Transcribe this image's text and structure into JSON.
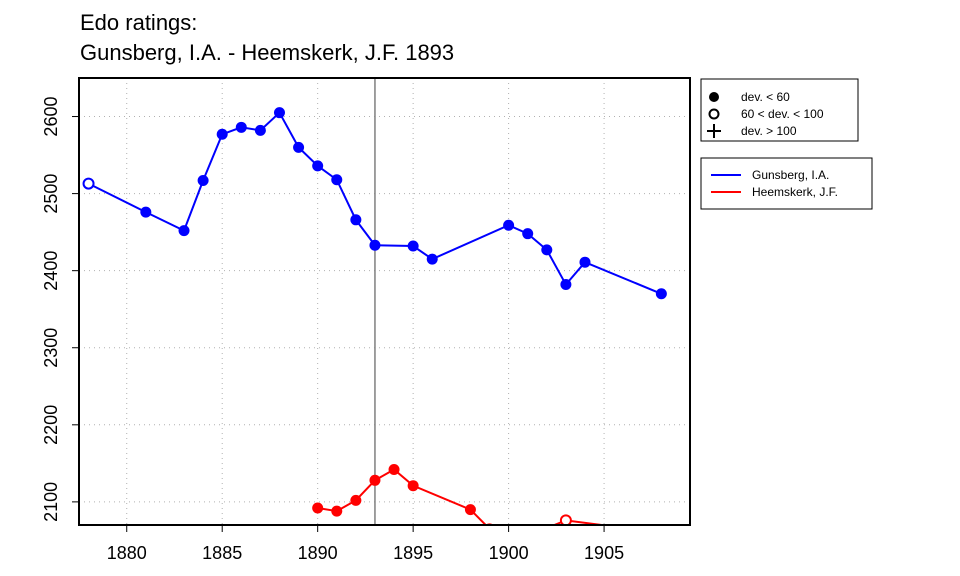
{
  "chart": {
    "title_line1": "Edo ratings:",
    "title_line2": "Gunsberg, I.A. - Heemskerk, J.F. 1893"
  },
  "legend_symbols": {
    "items": [
      {
        "label": "dev. < 60",
        "symbol": "filled-circle"
      },
      {
        "label": "60 < dev. < 100",
        "symbol": "open-circle"
      },
      {
        "label": "dev. > 100",
        "symbol": "plus"
      }
    ]
  },
  "legend_series": {
    "items": [
      {
        "label": "Gunsberg, I.A.",
        "color": "#0000ff"
      },
      {
        "label": "Heemskerk, J.F.",
        "color": "#ff0000"
      }
    ]
  },
  "chart_data": {
    "type": "line",
    "title": "Edo ratings: Gunsberg, I.A. - Heemskerk, J.F. 1893",
    "xlabel": "",
    "ylabel": "",
    "xlim": [
      1877.5,
      1909.5
    ],
    "ylim": [
      2070,
      2650
    ],
    "x_ticks": [
      1880,
      1885,
      1890,
      1895,
      1900,
      1905
    ],
    "y_ticks": [
      2100,
      2200,
      2300,
      2400,
      2500,
      2600
    ],
    "grid": "dotted",
    "legend_placement": "outside-right",
    "reference_line_x": 1893,
    "series": [
      {
        "name": "Gunsberg, I.A.",
        "color": "#0000ff",
        "points": [
          {
            "x": 1878,
            "y": 2513,
            "marker": "open"
          },
          {
            "x": 1881,
            "y": 2476,
            "marker": "filled"
          },
          {
            "x": 1883,
            "y": 2452,
            "marker": "filled"
          },
          {
            "x": 1884,
            "y": 2517,
            "marker": "filled"
          },
          {
            "x": 1885,
            "y": 2577,
            "marker": "filled"
          },
          {
            "x": 1886,
            "y": 2586,
            "marker": "filled"
          },
          {
            "x": 1887,
            "y": 2582,
            "marker": "filled"
          },
          {
            "x": 1888,
            "y": 2605,
            "marker": "filled"
          },
          {
            "x": 1889,
            "y": 2560,
            "marker": "filled"
          },
          {
            "x": 1890,
            "y": 2536,
            "marker": "filled"
          },
          {
            "x": 1891,
            "y": 2518,
            "marker": "filled"
          },
          {
            "x": 1892,
            "y": 2466,
            "marker": "filled"
          },
          {
            "x": 1893,
            "y": 2433,
            "marker": "filled"
          },
          {
            "x": 1895,
            "y": 2432,
            "marker": "filled"
          },
          {
            "x": 1896,
            "y": 2415,
            "marker": "filled"
          },
          {
            "x": 1900,
            "y": 2459,
            "marker": "filled"
          },
          {
            "x": 1901,
            "y": 2448,
            "marker": "filled"
          },
          {
            "x": 1902,
            "y": 2427,
            "marker": "filled"
          },
          {
            "x": 1903,
            "y": 2382,
            "marker": "filled"
          },
          {
            "x": 1904,
            "y": 2411,
            "marker": "filled"
          },
          {
            "x": 1908,
            "y": 2370,
            "marker": "filled"
          }
        ]
      },
      {
        "name": "Heemskerk, J.F.",
        "color": "#ff0000",
        "points": [
          {
            "x": 1890,
            "y": 2092,
            "marker": "filled"
          },
          {
            "x": 1891,
            "y": 2088,
            "marker": "filled"
          },
          {
            "x": 1892,
            "y": 2102,
            "marker": "filled"
          },
          {
            "x": 1893,
            "y": 2128,
            "marker": "filled"
          },
          {
            "x": 1894,
            "y": 2142,
            "marker": "filled"
          },
          {
            "x": 1895,
            "y": 2121,
            "marker": "filled"
          },
          {
            "x": 1898,
            "y": 2090,
            "marker": "filled"
          },
          {
            "x": 1899,
            "y": 2065,
            "marker": "filled"
          },
          {
            "x": 1900,
            "y": 2046,
            "marker": "filled"
          },
          {
            "x": 1903,
            "y": 2076,
            "marker": "open"
          },
          {
            "x": 1908,
            "y": 2060,
            "marker": "none"
          }
        ]
      }
    ]
  }
}
